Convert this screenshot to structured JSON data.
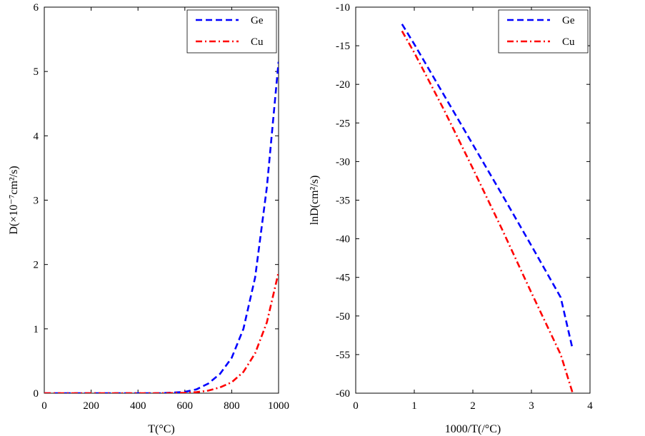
{
  "chart_data": [
    {
      "type": "line",
      "xlabel": "T(°C)",
      "ylabel": "D(×10⁻⁷cm²/s)",
      "xlim": [
        0,
        1000
      ],
      "ylim": [
        0,
        6
      ],
      "xticks": [
        0,
        200,
        400,
        600,
        800,
        1000
      ],
      "yticks": [
        0,
        1,
        2,
        3,
        4,
        5,
        6
      ],
      "grid": false,
      "legend_position": "top-right",
      "series": [
        {
          "name": "Ge",
          "color": "#0000ff",
          "style": "dashed",
          "x": [
            0,
            100,
            200,
            300,
            400,
            500,
            600,
            650,
            700,
            750,
            800,
            850,
            900,
            950,
            1000
          ],
          "y": [
            0.0,
            0.0,
            0.0,
            0.0,
            0.0,
            0.0,
            0.02,
            0.06,
            0.15,
            0.3,
            0.55,
            1.0,
            1.8,
            3.2,
            5.15
          ]
        },
        {
          "name": "Cu",
          "color": "#ff0000",
          "style": "dashdot",
          "x": [
            0,
            100,
            200,
            300,
            400,
            500,
            600,
            650,
            700,
            750,
            800,
            850,
            900,
            950,
            1000
          ],
          "y": [
            0.0,
            0.0,
            0.0,
            0.0,
            0.0,
            0.0,
            0.005,
            0.015,
            0.04,
            0.09,
            0.17,
            0.33,
            0.62,
            1.1,
            1.88
          ]
        }
      ]
    },
    {
      "type": "line",
      "xlabel": "1000/T(/°C)",
      "ylabel": "lnD(cm²/s)",
      "xlim": [
        0,
        4
      ],
      "ylim": [
        -60,
        -10
      ],
      "xticks": [
        0,
        1,
        2,
        3,
        4
      ],
      "yticks": [
        -60,
        -55,
        -50,
        -45,
        -40,
        -35,
        -30,
        -25,
        -20,
        -15,
        -10
      ],
      "grid": false,
      "legend_position": "top-right",
      "series": [
        {
          "name": "Ge",
          "color": "#0000ff",
          "style": "dashed",
          "x": [
            0.79,
            1.0,
            1.5,
            2.0,
            2.5,
            3.0,
            3.5,
            3.7
          ],
          "y": [
            -12.2,
            -14.8,
            -21.3,
            -27.8,
            -34.3,
            -40.9,
            -47.6,
            -54.2
          ]
        },
        {
          "name": "Cu",
          "color": "#ff0000",
          "style": "dashdot",
          "x": [
            0.79,
            1.0,
            1.5,
            2.0,
            2.5,
            3.0,
            3.5,
            3.7
          ],
          "y": [
            -13.1,
            -15.9,
            -23.2,
            -30.9,
            -38.8,
            -47.0,
            -55.0,
            -59.9
          ]
        }
      ]
    }
  ]
}
